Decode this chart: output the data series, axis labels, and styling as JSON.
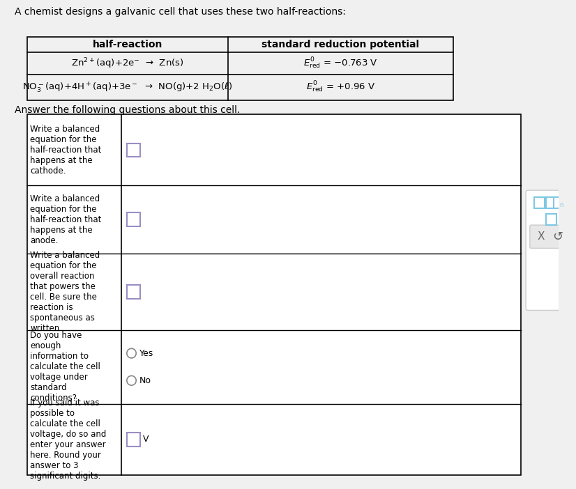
{
  "bg_color": "#f0f0f0",
  "white": "#ffffff",
  "border_color": "#000000",
  "table_border": "#000000",
  "light_blue": "#7ec8e3",
  "purple_input": "#9b8ec4",
  "gray_btn": "#d0d0d0",
  "intro_text": "A chemist designs a galvanic cell that uses these two half-reactions:",
  "col1_header": "half-reaction",
  "col2_header": "standard reduction potential",
  "row1_reaction": "Zn$^{2+}$(aq)+2e$^{-}$  →  Zn(s)",
  "row1_potential": "$E^0_{\\mathrm{red}}$ = −0.763 V",
  "row2_reaction": "NO$_3^-$(aq)+4H$^+$(aq)+3e$^-$  →  NO(g)+2 H$_2$O(ℓ)",
  "row2_potential": "$E^0_{\\mathrm{red}}$ = +0.96 V",
  "answer_text": "Answer the following questions about this cell.",
  "q1_label": "Write a balanced\nequation for the\nhalf-reaction that\nhappens at the\ncathode.",
  "q2_label": "Write a balanced\nequation for the\nhalf-reaction that\nhappens at the\nanode.",
  "q3_label": "Write a balanced\nequation for the\noverall reaction\nthat powers the\ncell. Be sure the\nreaction is\nspontaneous as\nwritten.",
  "q4_label": "Do you have\nenough\ninformation to\ncalculate the cell\nvoltage under\nstandard\nconditions?",
  "q4_yes": "Yes",
  "q4_no": "No",
  "q5_label": "If you said it was\npossible to\ncalculate the cell\nvoltage, do so and\nenter your answer\nhere. Round your\nanswer to 3\nsignificant digits.",
  "q5_unit": "V"
}
